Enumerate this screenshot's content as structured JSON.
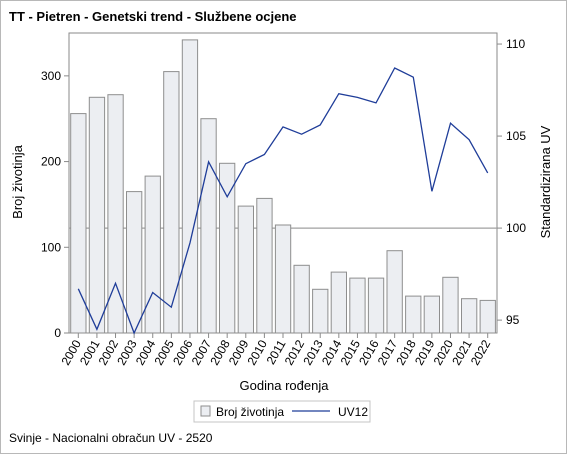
{
  "chart_data": {
    "type": "bar",
    "title": "TT - Pietren - Genetski trend - Službene ocjene",
    "xlabel": "Godina rođenja",
    "ylabel": "Broj životinja",
    "y2label": "Standardizirana UV",
    "footnote": "Svinje - Nacionalni obračun UV - 2520",
    "categories": [
      "2000",
      "2001",
      "2002",
      "2003",
      "2004",
      "2005",
      "2006",
      "2007",
      "2008",
      "2009",
      "2010",
      "2011",
      "2012",
      "2013",
      "2014",
      "2015",
      "2016",
      "2017",
      "2018",
      "2019",
      "2020",
      "2021",
      "2022"
    ],
    "series": [
      {
        "name": "Broj životinja",
        "type": "bar",
        "axis": "left",
        "values": [
          256,
          275,
          278,
          165,
          183,
          305,
          342,
          250,
          198,
          148,
          157,
          126,
          79,
          51,
          71,
          64,
          64,
          96,
          43,
          43,
          65,
          40,
          38
        ]
      },
      {
        "name": "UV12",
        "type": "line",
        "axis": "right",
        "values": [
          96.7,
          94.5,
          97.0,
          94.3,
          96.5,
          95.7,
          99.2,
          103.6,
          101.7,
          103.5,
          104.0,
          105.5,
          105.1,
          105.6,
          107.3,
          107.1,
          106.8,
          108.7,
          108.2,
          102.0,
          105.7,
          104.8,
          103.0
        ]
      }
    ],
    "ylim": [
      0,
      350
    ],
    "yticks": [
      0,
      100,
      200,
      300
    ],
    "y2lim": [
      94.3,
      110.6
    ],
    "y2ticks": [
      95,
      100,
      105,
      110
    ],
    "reference_line_y2": 100,
    "grid": false,
    "legend_position": "bottom",
    "colors": {
      "bar_fill": "#eceef2",
      "bar_stroke": "#8e8e8e",
      "line": "#1f3d99",
      "axis": "#8a8a8a",
      "refline": "#a0a0a0"
    }
  }
}
